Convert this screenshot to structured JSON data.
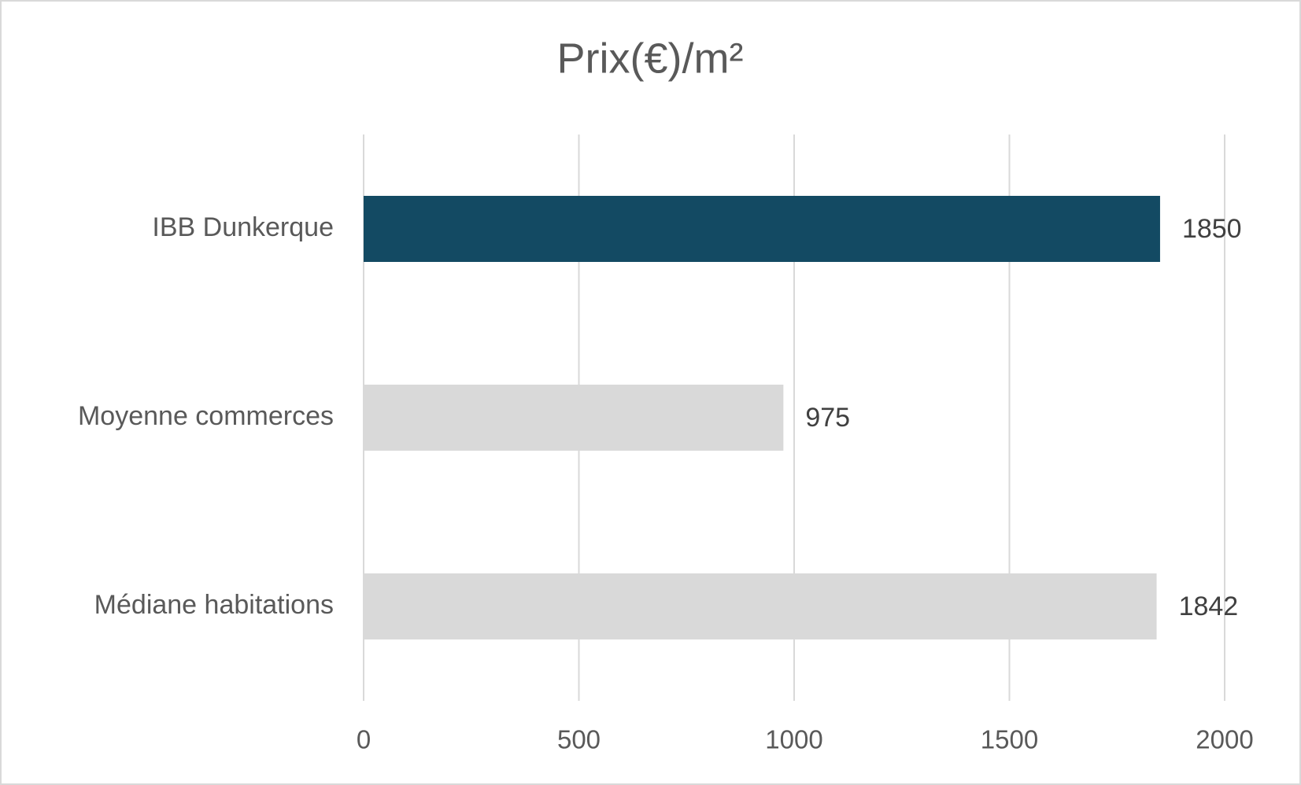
{
  "chart_data": {
    "type": "hbar",
    "title": "Prix(€)/m²",
    "categories": [
      "IBB Dunkerque",
      "Moyenne commerces",
      "Médiane habitations"
    ],
    "values": [
      1850,
      975,
      1842
    ],
    "colors": [
      "#134a63",
      "#d9d9d9",
      "#d9d9d9"
    ],
    "xlim": [
      0,
      2000
    ],
    "xticks": [
      0,
      500,
      1000,
      1500,
      2000
    ],
    "grid": true
  }
}
